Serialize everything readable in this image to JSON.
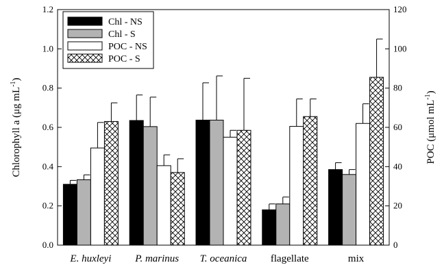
{
  "chart_data": {
    "type": "bar",
    "categories": [
      "E. huxleyi",
      "P. marinus",
      "T. oceanica",
      "flagellate",
      "mix"
    ],
    "category_italic": [
      true,
      true,
      true,
      false,
      false
    ],
    "y_left": {
      "label_pre": "Chlorophyll a (",
      "label_mu": "μg mL",
      "label_exp": "-1",
      "label_post": ")",
      "ylim": [
        0,
        1.2
      ],
      "ticks": [
        "0.0",
        "0.2",
        "0.4",
        "0.6",
        "0.8",
        "1.0",
        "1.2"
      ]
    },
    "y_right": {
      "label_pre": "POC (",
      "label_mu": "μmol mL",
      "label_exp": "-1",
      "label_post": ")",
      "ylim": [
        0,
        120
      ],
      "ticks": [
        "0",
        "20",
        "40",
        "60",
        "80",
        "100",
        "120"
      ]
    },
    "series": [
      {
        "name": "Chl - NS",
        "axis": "left",
        "fill": "#000000",
        "pattern": "solid",
        "values": [
          0.31,
          0.635,
          0.637,
          0.18,
          0.385
        ],
        "errors": [
          0.02,
          0.13,
          0.19,
          0.03,
          0.035
        ]
      },
      {
        "name": "Chl - S",
        "axis": "left",
        "fill": "#b3b3b3",
        "pattern": "solid",
        "values": [
          0.333,
          0.604,
          0.637,
          0.21,
          0.36
        ],
        "errors": [
          0.025,
          0.15,
          0.225,
          0.035,
          0.025
        ]
      },
      {
        "name": "POC - NS",
        "axis": "right",
        "fill": "#ffffff",
        "pattern": "solid",
        "values": [
          49.5,
          40.5,
          55,
          60.5,
          62
        ],
        "errors": [
          13,
          5.5,
          3.5,
          14,
          10
        ]
      },
      {
        "name": "POC - S",
        "axis": "right",
        "fill": "#ffffff",
        "pattern": "crosshatch",
        "values": [
          63,
          37,
          58.5,
          65.5,
          85.5
        ],
        "errors": [
          9.5,
          7,
          26.5,
          9,
          19.5
        ]
      }
    ],
    "grid": false,
    "legend_position": "top-left"
  }
}
